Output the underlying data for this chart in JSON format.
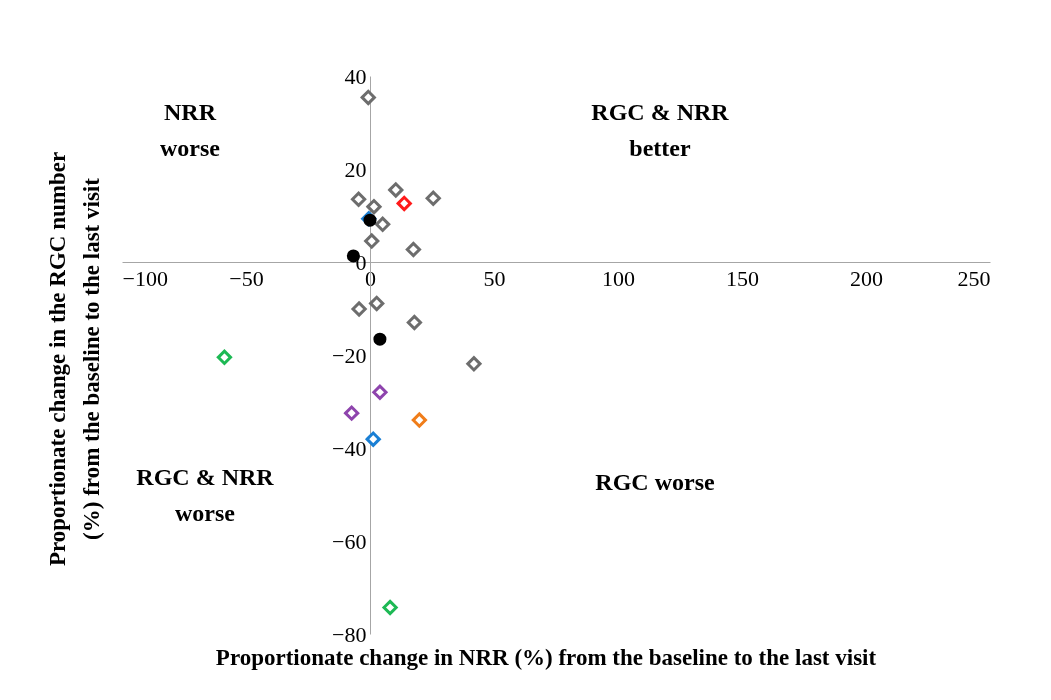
{
  "chart_data": {
    "type": "scatter",
    "xlabel": "Proportionate change in NRR (%) from  the baseline to the last visit",
    "ylabel": "Proportionate change in the RGC number\n(%) from the baseline to the last visit",
    "xlim": [
      -100,
      250
    ],
    "xticks": [
      -100,
      -50,
      0,
      50,
      100,
      150,
      200,
      250
    ],
    "ylim": [
      -80,
      40
    ],
    "yticks": [
      -80,
      -60,
      -40,
      -20,
      0,
      20,
      40
    ],
    "grid": false,
    "annotations": [
      "NRR\nworse",
      "RGC & NRR\nbetter",
      "RGC & NRR\nworse",
      "RGC worse"
    ],
    "series": [
      {
        "color": "#ff1a1a",
        "marker": "diamond",
        "x": [
          13.8
        ],
        "values": [
          12.6
        ]
      },
      {
        "color": "#1a7fd4",
        "marker": "diamond",
        "x": [
          -0.5,
          1.3
        ],
        "values": [
          9.3,
          -38.1
        ]
      },
      {
        "color": "#1db954",
        "marker": "diamond",
        "x": [
          -58.7,
          8.1
        ],
        "values": [
          -20.5,
          -74.3
        ]
      },
      {
        "color": "#8e44ad",
        "marker": "diamond",
        "x": [
          4.0,
          -7.4
        ],
        "values": [
          -28.0,
          -32.5
        ]
      },
      {
        "color": "#f07d1a",
        "marker": "diamond",
        "x": [
          19.9
        ],
        "values": [
          -34.0
        ]
      },
      {
        "color": "#6d6d6d",
        "marker": "diamond",
        "x": [
          -0.7,
          10.4,
          25.5,
          1.6,
          5.1,
          17.5,
          -4.4,
          2.7,
          41.9
        ],
        "values": [
          35.4,
          15.5,
          13.7,
          11.9,
          8.1,
          2.7,
          -10.1,
          -8.9,
          -21.9
        ]
      },
      {
        "color": "#6d6d6d",
        "marker": "diamond",
        "x": [
          -4.6,
          0.7,
          17.9
        ],
        "values": [
          13.5,
          4.5,
          -13.0
        ]
      },
      {
        "color": "#000000",
        "marker": "circle",
        "x": [
          0.0,
          -6.7,
          4.0
        ],
        "values": [
          9.0,
          1.3,
          -16.6
        ]
      }
    ]
  }
}
